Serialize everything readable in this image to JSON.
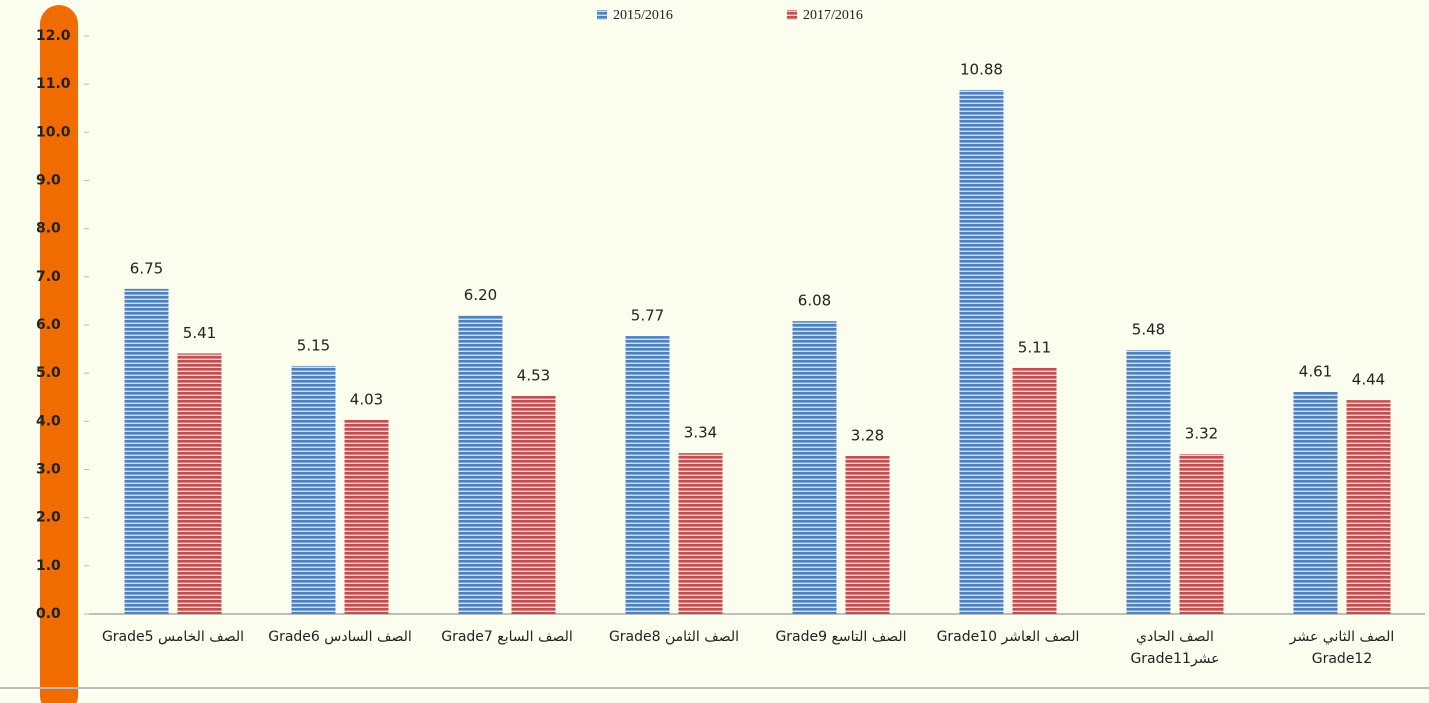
{
  "chart_data": {
    "type": "bar",
    "categories": [
      "الصف الخامس Grade5",
      "الصف السادس  Grade6",
      "الصف السابع Grade7",
      "الصف الثامن Grade8",
      "الصف التاسع Grade9",
      "الصف العاشر Grade10",
      "الصف الحادي\nعشرGrade11",
      "الصف الثاني عشر\nGrade12"
    ],
    "series": [
      {
        "name": "2015/2016",
        "color": "#4f81bd",
        "values": [
          6.75,
          5.15,
          6.2,
          5.77,
          6.08,
          10.88,
          5.48,
          4.61
        ],
        "value_labels": [
          "6.75",
          "5.15",
          "6.20",
          "5.77",
          "6.08",
          "10.88",
          "5.48",
          "4.61"
        ]
      },
      {
        "name": "2017/2016",
        "color": "#c0504d",
        "values": [
          5.41,
          4.03,
          4.53,
          3.34,
          3.28,
          5.11,
          3.32,
          4.44
        ],
        "value_labels": [
          "5.41",
          "4.03",
          "4.53",
          "3.34",
          "3.28",
          "5.11",
          "3.32",
          "4.44"
        ]
      }
    ],
    "ylim": [
      0,
      12
    ],
    "yticks": [
      {
        "value": 0,
        "label": "0.0"
      },
      {
        "value": 1,
        "label": "1.0"
      },
      {
        "value": 2,
        "label": "2.0"
      },
      {
        "value": 3,
        "label": "3.0"
      },
      {
        "value": 4,
        "label": "4.0"
      },
      {
        "value": 5,
        "label": "5.0"
      },
      {
        "value": 6,
        "label": "6.0"
      },
      {
        "value": 7,
        "label": "7.0"
      },
      {
        "value": 8,
        "label": "8.0"
      },
      {
        "value": 9,
        "label": "9.0"
      },
      {
        "value": 10,
        "label": "10.0"
      },
      {
        "value": 11,
        "label": "11.0"
      },
      {
        "value": 12,
        "label": "12.0"
      }
    ]
  }
}
